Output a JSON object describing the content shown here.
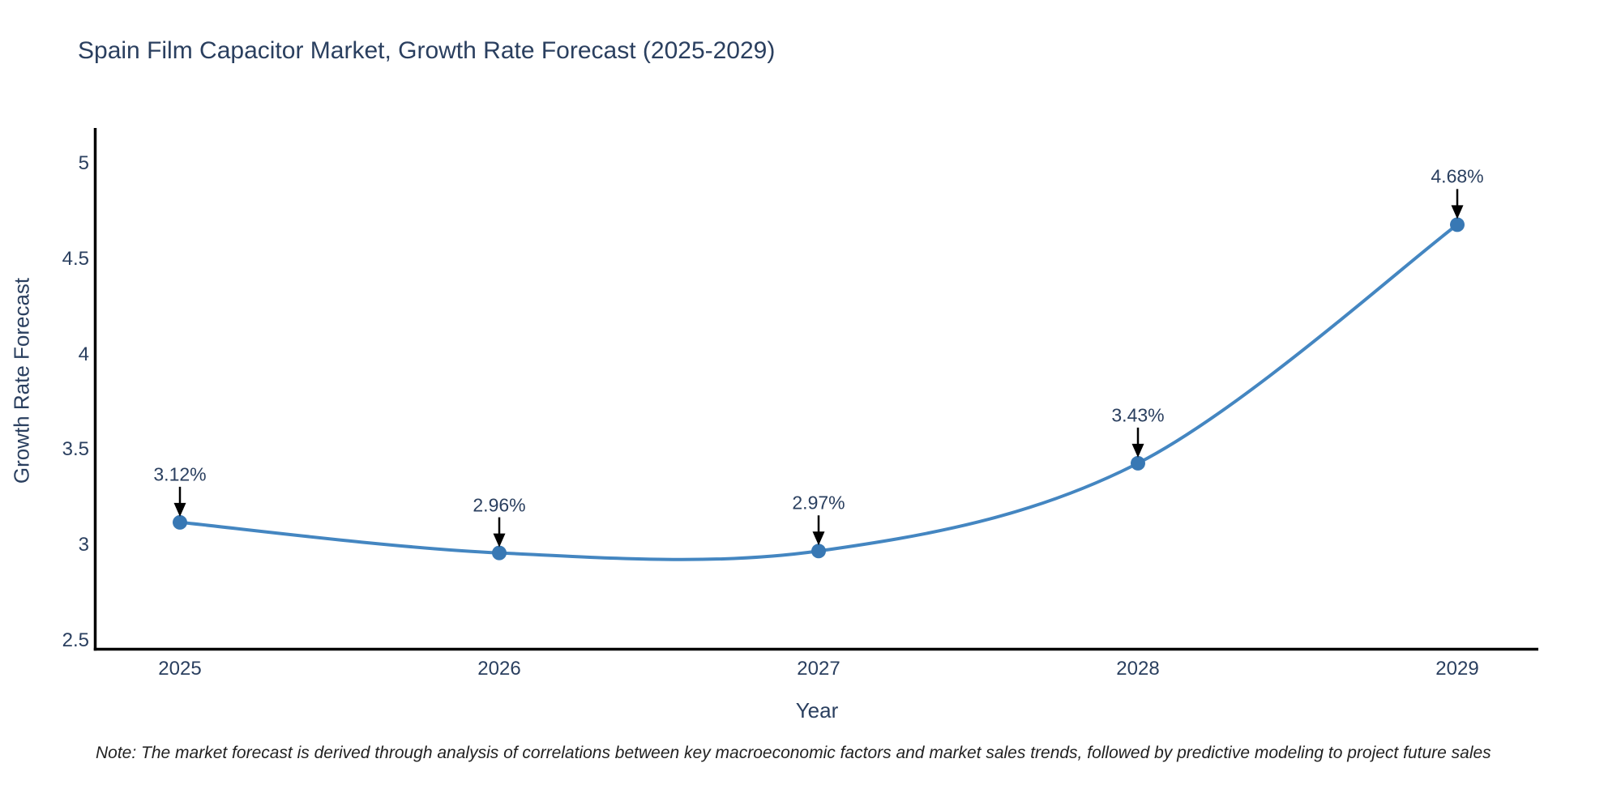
{
  "page": {
    "background": "#ffffff"
  },
  "footnote": "Note: The market forecast is derived through analysis of correlations between key macroeconomic factors and market sales trends, followed by predictive modeling to project future sales",
  "colors": {
    "line": "#4486c1",
    "marker": "#3878b4",
    "axis": "#000000",
    "arrow": "#000000",
    "title_text": "#2a3f5f",
    "tick_text": "#2a3f5f",
    "annotation_text": "#2a3f5f",
    "note_text": "#222222"
  },
  "chart_data": {
    "type": "line",
    "title": "Spain Film Capacitor Market, Growth Rate Forecast (2025-2029)",
    "xlabel": "Year",
    "ylabel": "Growth Rate Forecast",
    "x": [
      2025,
      2026,
      2027,
      2028,
      2029
    ],
    "xtick_labels": [
      "2025",
      "2026",
      "2027",
      "2028",
      "2029"
    ],
    "series": [
      {
        "name": "Growth Rate Forecast",
        "values": [
          3.12,
          2.96,
          2.97,
          3.43,
          4.68
        ]
      }
    ],
    "labels": [
      "3.12%",
      "2.96%",
      "2.97%",
      "3.43%",
      "4.68%"
    ],
    "ylim": [
      2.5,
      5
    ],
    "yticks": [
      2.5,
      3,
      3.5,
      4,
      4.5,
      5
    ],
    "ytick_labels": [
      "2.5",
      "3",
      "3.5",
      "4",
      "4.5",
      "5"
    ],
    "grid": false,
    "line_shape": "spline",
    "legend_position": "none",
    "annotation_style": "arrow-down-to-point"
  }
}
